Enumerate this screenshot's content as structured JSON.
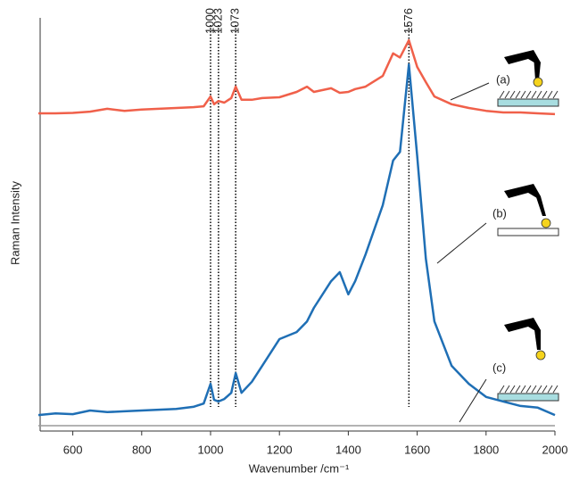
{
  "chart_data": {
    "type": "line",
    "xlabel": "Wavenumber /cm⁻¹",
    "ylabel": "Raman Intensity",
    "x": [
      500,
      550,
      600,
      650,
      700,
      750,
      800,
      850,
      900,
      950,
      980,
      1000,
      1010,
      1023,
      1040,
      1060,
      1073,
      1090,
      1120,
      1150,
      1200,
      1250,
      1280,
      1300,
      1350,
      1375,
      1400,
      1420,
      1450,
      1500,
      1530,
      1550,
      1576,
      1600,
      1625,
      1650,
      1700,
      1750,
      1800,
      1850,
      1900,
      1950,
      2000
    ],
    "series": [
      {
        "name": "(a)",
        "color": "#f0604a",
        "values": [
          77.4,
          77.4,
          77.5,
          77.8,
          78.5,
          78.0,
          78.3,
          78.5,
          78.7,
          78.9,
          79.1,
          81.5,
          79.6,
          80.4,
          80.0,
          81.1,
          83.9,
          80.7,
          80.7,
          81.1,
          81.3,
          82.6,
          83.9,
          82.6,
          83.5,
          82.4,
          82.6,
          83.3,
          83.9,
          86.5,
          92.0,
          91.0,
          95.2,
          88.7,
          85.0,
          81.5,
          79.6,
          78.7,
          78.0,
          77.6,
          77.6,
          77.4,
          77.2
        ]
      },
      {
        "name": "(b)",
        "color": "#1f6fb5",
        "values": [
          3.9,
          4.3,
          4.1,
          5.0,
          4.6,
          4.8,
          5.0,
          5.2,
          5.4,
          5.9,
          6.7,
          11.5,
          7.6,
          7.2,
          7.8,
          9.3,
          14.1,
          9.3,
          12.0,
          15.9,
          22.4,
          24.1,
          26.7,
          30.0,
          36.5,
          38.7,
          33.3,
          36.5,
          43.0,
          55.0,
          65.9,
          68.0,
          89.3,
          67.0,
          42.0,
          26.7,
          15.9,
          11.5,
          8.3,
          7.2,
          6.1,
          5.7,
          3.9
        ]
      },
      {
        "name": "(c)",
        "color": "#9a9a9a",
        "values": [
          1.3,
          1.3,
          1.3,
          1.3,
          1.3,
          1.3,
          1.3,
          1.3,
          1.3,
          1.3,
          1.3,
          1.3,
          1.3,
          1.3,
          1.3,
          1.3,
          1.3,
          1.3,
          1.3,
          1.3,
          1.3,
          1.3,
          1.3,
          1.3,
          1.3,
          1.3,
          1.3,
          1.3,
          1.3,
          1.3,
          1.3,
          1.3,
          1.3,
          1.3,
          1.3,
          1.3,
          1.3,
          1.3,
          1.3,
          1.3,
          1.3,
          1.3,
          1.3
        ]
      }
    ],
    "peaks": [
      1000,
      1023,
      1073,
      1576
    ],
    "xlim": [
      500,
      2000
    ],
    "ylim": [
      0,
      100
    ],
    "xticks": [
      600,
      800,
      1000,
      1200,
      1400,
      1600,
      1800,
      2000
    ]
  }
}
